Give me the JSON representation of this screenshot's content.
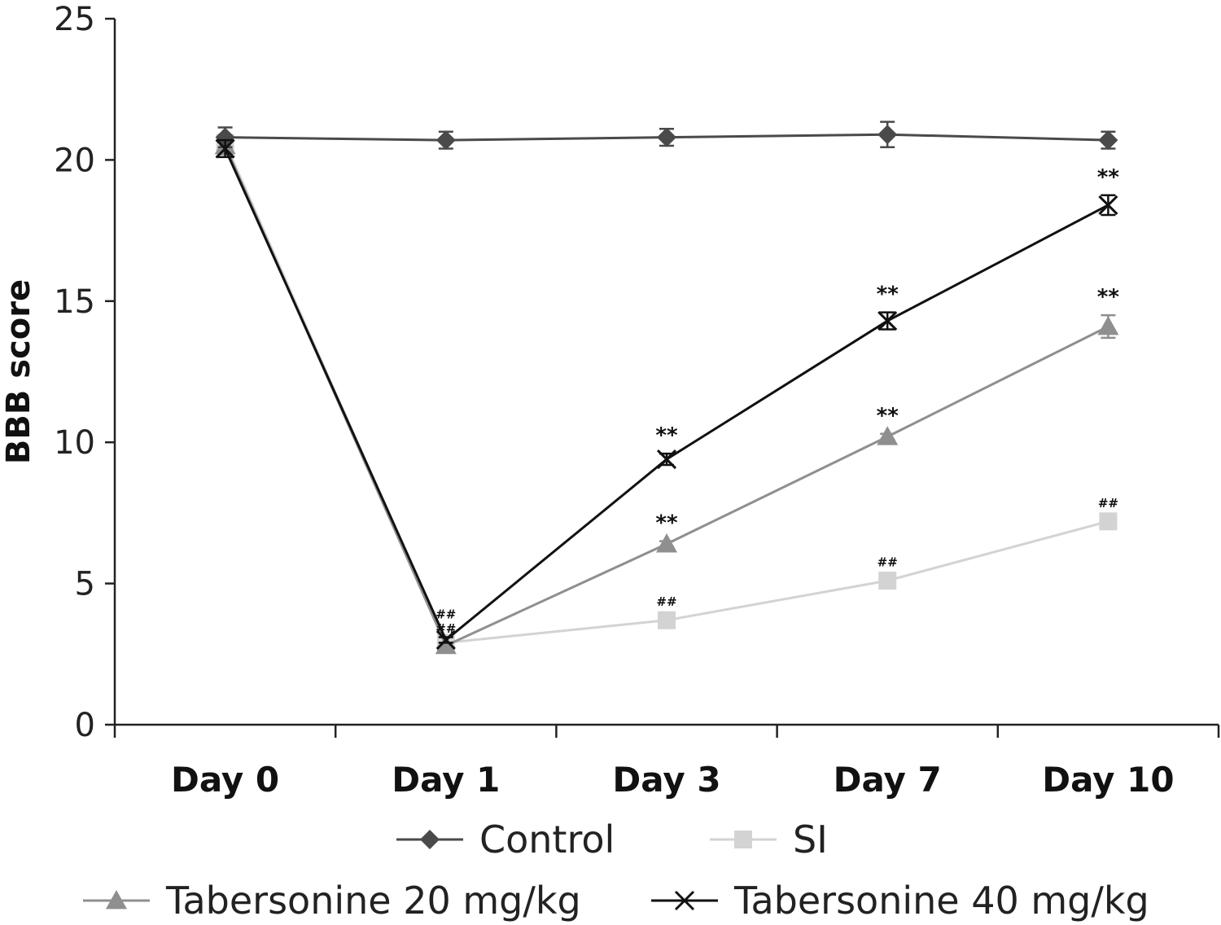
{
  "chart_data": {
    "type": "line",
    "title": "",
    "xlabel": "",
    "ylabel": "BBB score",
    "categories": [
      "Day 0",
      "Day 1",
      "Day 3",
      "Day 7",
      "Day 10"
    ],
    "ylim": [
      0,
      25
    ],
    "yticks": [
      "0",
      "5",
      "10",
      "15",
      "20",
      "25"
    ],
    "grid": false,
    "legend_position": "bottom",
    "series": [
      {
        "name": "Control",
        "color": "#4a4a4a",
        "marker": "diamond",
        "values": [
          20.8,
          20.7,
          20.8,
          20.9,
          20.7
        ],
        "errors": [
          0.35,
          0.3,
          0.3,
          0.45,
          0.3
        ],
        "annotations": [
          "",
          "",
          "",
          "",
          ""
        ]
      },
      {
        "name": "SI",
        "color": "#d3d3d3",
        "marker": "square",
        "values": [
          20.6,
          2.9,
          3.7,
          5.1,
          7.2
        ],
        "errors": [
          0.3,
          0.1,
          0.1,
          0.1,
          0.1
        ],
        "annotations": [
          "",
          "##",
          "##",
          "##",
          "##"
        ]
      },
      {
        "name": "Tabersonine 20 mg/kg",
        "color": "#8f8f8f",
        "marker": "triangle",
        "values": [
          20.5,
          2.8,
          6.4,
          10.2,
          14.1
        ],
        "errors": [
          0.3,
          0.1,
          0.1,
          0.1,
          0.4
        ],
        "annotations": [
          "",
          "##",
          "**",
          "**",
          "**"
        ]
      },
      {
        "name": "Tabersonine 40 mg/kg",
        "color": "#111111",
        "marker": "x",
        "values": [
          20.4,
          3.0,
          9.4,
          14.3,
          18.4
        ],
        "errors": [
          0.3,
          0.1,
          0.2,
          0.3,
          0.35
        ],
        "annotations": [
          "",
          "",
          "**",
          "**",
          "**"
        ]
      }
    ]
  }
}
